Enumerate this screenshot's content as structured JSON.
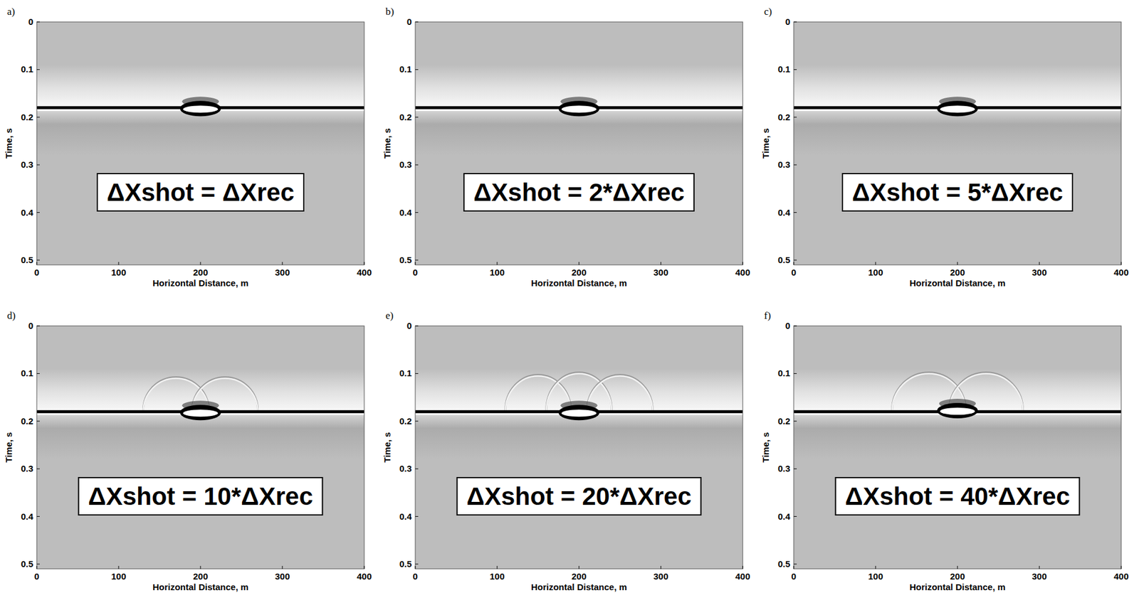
{
  "chart_data": [
    {
      "type": "seismic_image",
      "panel_label": "a)",
      "annotations": [
        "ΔXshot = ΔXrec"
      ],
      "x_label": "Horizontal Distance, m",
      "y_label": "Time, s",
      "xlim": [
        0,
        400
      ],
      "xticks": [
        0,
        100,
        200,
        300,
        400
      ],
      "ylim": [
        0,
        0.51
      ],
      "yticks": [
        0,
        0.1,
        0.2,
        0.3,
        0.4,
        0.5
      ],
      "reflector_t": 0.18,
      "diffractor": {
        "x": 200,
        "half_width": 25,
        "t": 0.182
      },
      "artifact_arcs": []
    },
    {
      "type": "seismic_image",
      "panel_label": "b)",
      "annotations": [
        "ΔXshot = 2*ΔXrec"
      ],
      "x_label": "Horizontal Distance, m",
      "y_label": "Time, s",
      "xlim": [
        0,
        400
      ],
      "xticks": [
        0,
        100,
        200,
        300,
        400
      ],
      "ylim": [
        0,
        0.51
      ],
      "yticks": [
        0,
        0.1,
        0.2,
        0.3,
        0.4,
        0.5
      ],
      "reflector_t": 0.18,
      "diffractor": {
        "x": 200,
        "half_width": 25,
        "t": 0.182
      },
      "artifact_arcs": []
    },
    {
      "type": "seismic_image",
      "panel_label": "c)",
      "annotations": [
        "ΔXshot = 5*ΔXrec"
      ],
      "x_label": "Horizontal Distance, m",
      "y_label": "Time, s",
      "xlim": [
        0,
        400
      ],
      "xticks": [
        0,
        100,
        200,
        300,
        400
      ],
      "ylim": [
        0,
        0.51
      ],
      "yticks": [
        0,
        0.1,
        0.2,
        0.3,
        0.4,
        0.5
      ],
      "reflector_t": 0.18,
      "diffractor": {
        "x": 200,
        "half_width": 25,
        "t": 0.182
      },
      "artifact_arcs": []
    },
    {
      "type": "seismic_image",
      "panel_label": "d)",
      "annotations": [
        "ΔXshot = 10*ΔXrec"
      ],
      "x_label": "Horizontal Distance, m",
      "y_label": "Time, s",
      "xlim": [
        0,
        400
      ],
      "xticks": [
        0,
        100,
        200,
        300,
        400
      ],
      "ylim": [
        0,
        0.51
      ],
      "yticks": [
        0,
        0.1,
        0.2,
        0.3,
        0.4,
        0.5
      ],
      "reflector_t": 0.18,
      "diffractor": {
        "x": 200,
        "half_width": 25,
        "t": 0.182
      },
      "artifact_arcs": [
        {
          "x": 170,
          "half_width": 40,
          "t": 0.11
        },
        {
          "x": 230,
          "half_width": 40,
          "t": 0.11
        }
      ]
    },
    {
      "type": "seismic_image",
      "panel_label": "e)",
      "annotations": [
        "ΔXshot = 20*ΔXrec"
      ],
      "x_label": "Horizontal Distance, m",
      "y_label": "Time, s",
      "xlim": [
        0,
        400
      ],
      "xticks": [
        0,
        100,
        200,
        300,
        400
      ],
      "ylim": [
        0,
        0.51
      ],
      "yticks": [
        0,
        0.1,
        0.2,
        0.3,
        0.4,
        0.5
      ],
      "reflector_t": 0.18,
      "diffractor": {
        "x": 200,
        "half_width": 25,
        "t": 0.182
      },
      "artifact_arcs": [
        {
          "x": 150,
          "half_width": 40,
          "t": 0.105
        },
        {
          "x": 200,
          "half_width": 40,
          "t": 0.1
        },
        {
          "x": 250,
          "half_width": 40,
          "t": 0.105
        }
      ]
    },
    {
      "type": "seismic_image",
      "panel_label": "f)",
      "annotations": [
        "ΔXshot = 40*ΔXrec"
      ],
      "x_label": "Horizontal Distance, m",
      "y_label": "Time, s",
      "xlim": [
        0,
        400
      ],
      "xticks": [
        0,
        100,
        200,
        300,
        400
      ],
      "ylim": [
        0,
        0.51
      ],
      "yticks": [
        0,
        0.1,
        0.2,
        0.3,
        0.4,
        0.5
      ],
      "reflector_t": 0.18,
      "diffractor": {
        "x": 200,
        "half_width": 25,
        "t": 0.178
      },
      "artifact_arcs": [
        {
          "x": 165,
          "half_width": 45,
          "t": 0.1
        },
        {
          "x": 235,
          "half_width": 45,
          "t": 0.1
        }
      ]
    }
  ]
}
